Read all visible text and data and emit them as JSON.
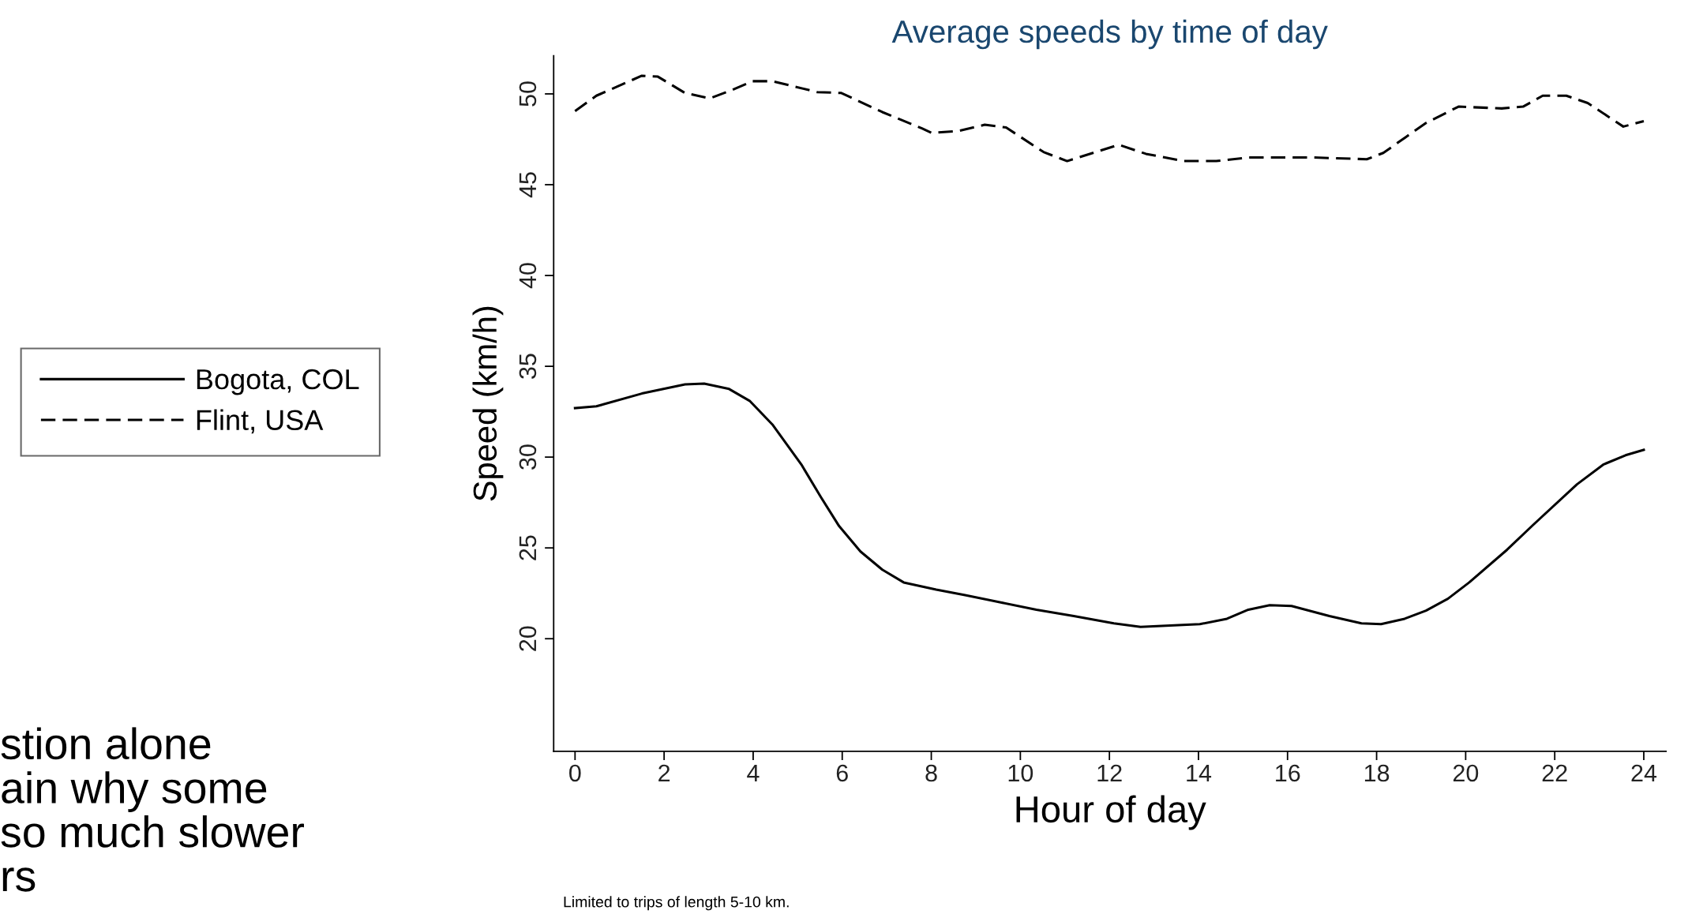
{
  "chart_data": {
    "type": "line",
    "title": "Average speeds by time of day",
    "xlabel": "Hour of day",
    "ylabel": "Speed (km/h)",
    "series": [
      {
        "name": "Bogota, COL",
        "color": "#000000",
        "line_style": "solid",
        "x": [
          0,
          0.48,
          1.5,
          2.47,
          2.9,
          3.46,
          3.92,
          4.43,
          5.08,
          5.52,
          5.93,
          6.41,
          6.9,
          7.38,
          8.11,
          8.76,
          9.56,
          10.36,
          11.2,
          12.1,
          12.7,
          14.03,
          14.64,
          15.12,
          15.6,
          16.09,
          16.94,
          17.66,
          18.1,
          18.63,
          19.11,
          19.6,
          20.08,
          20.93,
          21.53,
          22.5,
          23.1,
          23.59,
          24
        ],
        "values": [
          32.7,
          32.8,
          33.5,
          34.0,
          34.05,
          33.75,
          33.1,
          31.8,
          29.6,
          27.8,
          26.2,
          24.8,
          23.8,
          23.1,
          22.7,
          22.4,
          22.0,
          21.6,
          21.25,
          20.85,
          20.65,
          20.8,
          21.1,
          21.6,
          21.85,
          21.8,
          21.25,
          20.85,
          20.8,
          21.1,
          21.55,
          22.2,
          23.1,
          24.9,
          26.3,
          28.5,
          29.6,
          30.1,
          30.4
        ]
      },
      {
        "name": "Flint, USA",
        "color": "#000000",
        "line_style": "dashed",
        "x": [
          0,
          0.48,
          1.5,
          1.86,
          2.47,
          3.02,
          3.51,
          3.99,
          4.43,
          5.44,
          5.98,
          6.9,
          7.79,
          8.01,
          8.59,
          9.2,
          9.68,
          10.52,
          11.05,
          12.21,
          12.82,
          13.67,
          14.4,
          15.12,
          16.57,
          17.78,
          18.15,
          19.11,
          19.84,
          20.81,
          21.29,
          21.73,
          22.26,
          22.74,
          23.54,
          24
        ],
        "values": [
          49.05,
          49.9,
          51.0,
          50.95,
          50.05,
          49.75,
          50.2,
          50.7,
          50.7,
          50.1,
          50.05,
          49.0,
          48.1,
          47.85,
          47.95,
          48.3,
          48.15,
          46.8,
          46.3,
          47.2,
          46.7,
          46.3,
          46.3,
          46.5,
          46.5,
          46.4,
          46.75,
          48.4,
          49.3,
          49.2,
          49.3,
          49.9,
          49.9,
          49.5,
          48.2,
          48.5
        ]
      }
    ],
    "xlim": [
      -0.48,
      24.5
    ],
    "xticks": [
      0,
      2,
      4,
      6,
      8,
      10,
      12,
      14,
      16,
      18,
      20,
      22,
      24
    ],
    "ylim": [
      13.8,
      52.1
    ],
    "yticks": [
      20,
      25,
      30,
      35,
      40,
      45,
      50
    ],
    "grid": false,
    "legend": "left",
    "annotations": [
      "Limited to trips of length 5-10 km.",
      "stion alone\nain why some\nso much slower\nrs"
    ]
  }
}
